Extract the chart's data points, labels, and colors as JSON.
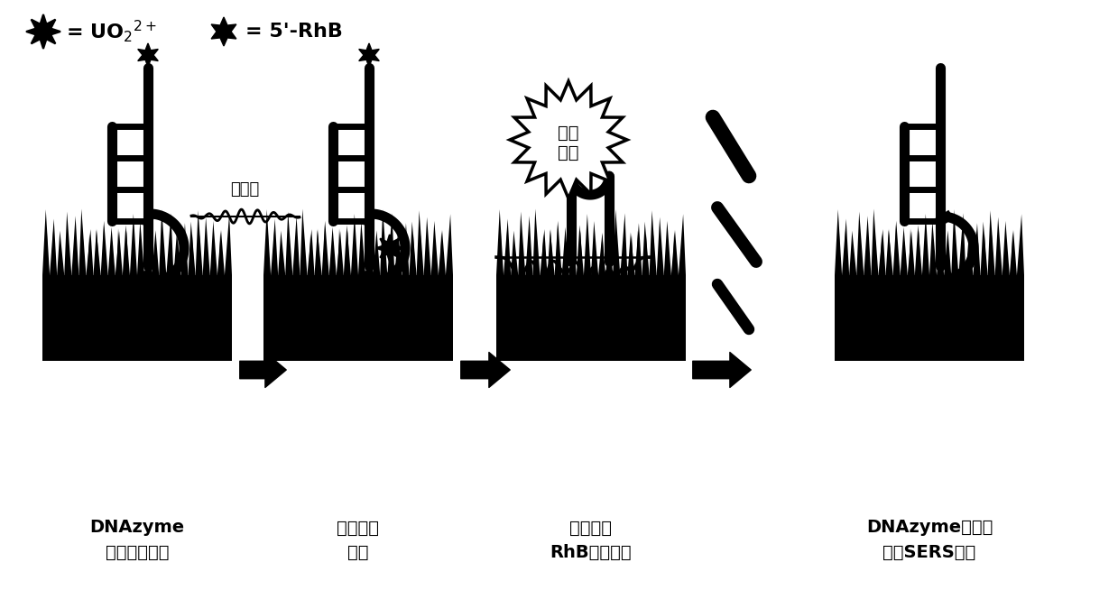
{
  "bg_color": "#ffffff",
  "text_color": "#000000",
  "label1_line1": "DNAzyme",
  "label1_line2": "生物传感芯片",
  "label2_line1": "加入鑰酰",
  "label2_line2": "离子",
  "label3_line1": "探针分子",
  "label3_line2": "RhB信号增强",
  "label4_line1": "DNAzyme可循环",
  "label4_line2": "生物SERS芯片",
  "signal_weak": "弱信号",
  "figsize": [
    12.39,
    6.54
  ],
  "dpi": 100
}
